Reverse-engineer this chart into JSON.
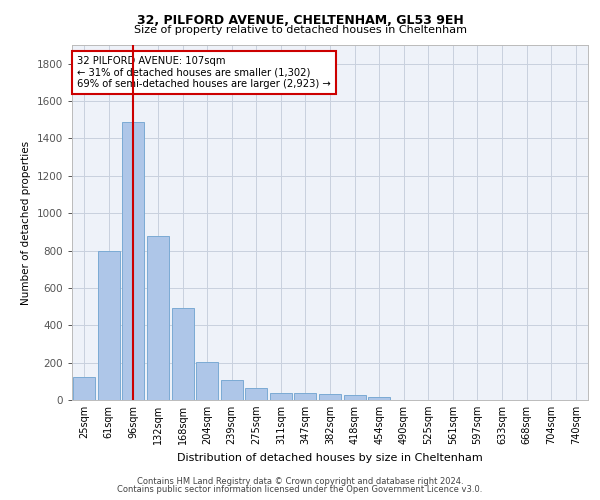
{
  "title1": "32, PILFORD AVENUE, CHELTENHAM, GL53 9EH",
  "title2": "Size of property relative to detached houses in Cheltenham",
  "xlabel": "Distribution of detached houses by size in Cheltenham",
  "ylabel": "Number of detached properties",
  "categories": [
    "25sqm",
    "61sqm",
    "96sqm",
    "132sqm",
    "168sqm",
    "204sqm",
    "239sqm",
    "275sqm",
    "311sqm",
    "347sqm",
    "382sqm",
    "418sqm",
    "454sqm",
    "490sqm",
    "525sqm",
    "561sqm",
    "597sqm",
    "633sqm",
    "668sqm",
    "704sqm",
    "740sqm"
  ],
  "values": [
    125,
    800,
    1490,
    880,
    490,
    205,
    105,
    65,
    40,
    35,
    30,
    25,
    15,
    0,
    0,
    0,
    0,
    0,
    0,
    0,
    0
  ],
  "bar_color": "#aec6e8",
  "bar_edge_color": "#7baad4",
  "vline_color": "#cc0000",
  "vline_x": 2.0,
  "annotation_title": "32 PILFORD AVENUE: 107sqm",
  "annotation_line1": "← 31% of detached houses are smaller (1,302)",
  "annotation_line2": "69% of semi-detached houses are larger (2,923) →",
  "annotation_box_color": "#cc0000",
  "ylim": [
    0,
    1900
  ],
  "yticks": [
    0,
    200,
    400,
    600,
    800,
    1000,
    1200,
    1400,
    1600,
    1800
  ],
  "footer1": "Contains HM Land Registry data © Crown copyright and database right 2024.",
  "footer2": "Contains public sector information licensed under the Open Government Licence v3.0.",
  "bg_color": "#eef2f9",
  "grid_color": "#c8d0de"
}
